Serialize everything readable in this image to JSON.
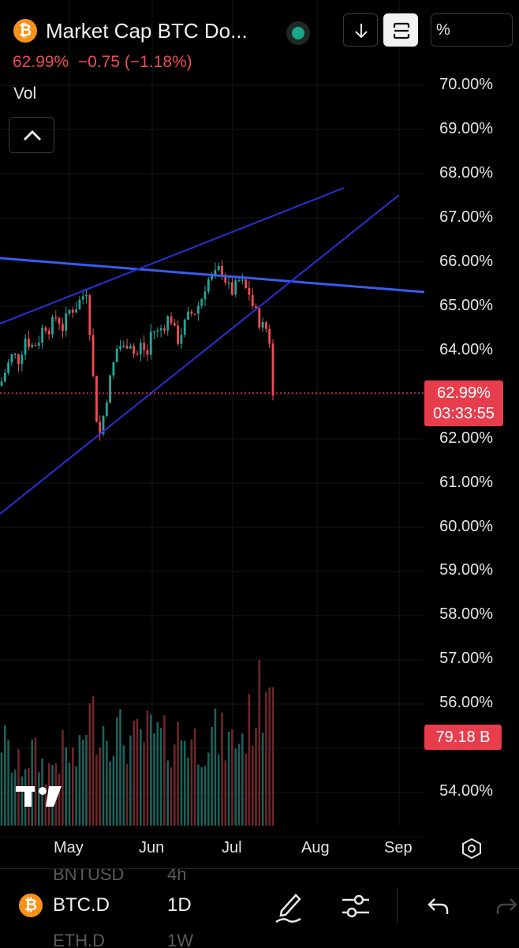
{
  "header": {
    "symbol_title": "Market Cap BTC Do...",
    "last_value": "62.99%",
    "change": "−0.75 (−1.18%)",
    "coin_logo_glyph": "₿",
    "status": "market-open",
    "percent_mode_label": "%",
    "accent_up": "#26a69a",
    "accent_down": "#ef4c55"
  },
  "indicator": {
    "label": "Vol"
  },
  "price_axis": {
    "labels": [
      "70.00%",
      "69.00%",
      "68.00%",
      "67.00%",
      "66.00%",
      "65.00%",
      "64.00%",
      "62.00%",
      "61.00%",
      "60.00%",
      "59.00%",
      "58.00%",
      "57.00%",
      "56.00%",
      "54.00%"
    ],
    "last_price_label": "62.99%",
    "countdown_label": "03:33:55",
    "volume_label": "79.18 B"
  },
  "time_axis": {
    "labels": [
      "May",
      "Jun",
      "Jul",
      "Aug",
      "Sep"
    ]
  },
  "bottom_bar": {
    "symbol": "BTC.D",
    "interval": "1D",
    "ghost_symbol_above": "BNTUSD",
    "ghost_interval_above": "4h",
    "ghost_symbol_below": "ETH.D",
    "ghost_interval_below": "1W"
  },
  "watermark": {
    "text": "TV"
  },
  "chart_data": {
    "type": "candlestick",
    "series_name": "BTC.D",
    "ylim": [
      53.5,
      70.5
    ],
    "last_value": 62.99,
    "trend_lines": 3,
    "candle_path": [
      [
        0,
        63.2
      ],
      [
        8,
        63.6
      ],
      [
        16,
        63.9
      ],
      [
        24,
        63.8
      ],
      [
        32,
        64.3
      ],
      [
        40,
        64.1
      ],
      [
        48,
        64.2
      ],
      [
        56,
        64.6
      ],
      [
        64,
        64.5
      ],
      [
        72,
        64.8
      ],
      [
        80,
        64.5
      ],
      [
        88,
        64.9
      ],
      [
        96,
        65.0
      ],
      [
        104,
        65.2
      ],
      [
        110,
        65.4
      ],
      [
        116,
        64.0
      ],
      [
        120,
        62.8
      ],
      [
        124,
        62.3
      ],
      [
        128,
        62.0
      ],
      [
        132,
        62.7
      ],
      [
        138,
        63.2
      ],
      [
        144,
        63.7
      ],
      [
        150,
        64.2
      ],
      [
        156,
        64.0
      ],
      [
        164,
        64.3
      ],
      [
        172,
        63.8
      ],
      [
        180,
        64.2
      ],
      [
        186,
        63.8
      ],
      [
        192,
        64.5
      ],
      [
        200,
        64.4
      ],
      [
        208,
        64.6
      ],
      [
        216,
        64.8
      ],
      [
        224,
        64.2
      ],
      [
        232,
        64.5
      ],
      [
        240,
        64.8
      ],
      [
        248,
        64.9
      ],
      [
        256,
        65.2
      ],
      [
        262,
        65.6
      ],
      [
        268,
        65.6
      ],
      [
        274,
        65.7
      ],
      [
        280,
        65.9
      ],
      [
        286,
        65.6
      ],
      [
        292,
        65.3
      ],
      [
        298,
        65.4
      ],
      [
        304,
        65.6
      ],
      [
        310,
        65.4
      ],
      [
        316,
        65.3
      ],
      [
        322,
        64.9
      ],
      [
        328,
        64.7
      ],
      [
        334,
        64.5
      ],
      [
        340,
        64.5
      ],
      [
        344,
        63.9
      ],
      [
        347,
        62.99
      ]
    ],
    "volume_path": [
      [
        0,
        0.5
      ],
      [
        20,
        0.3
      ],
      [
        40,
        0.4
      ],
      [
        60,
        0.3
      ],
      [
        80,
        0.4
      ],
      [
        100,
        0.35
      ],
      [
        110,
        0.6
      ],
      [
        130,
        0.55
      ],
      [
        150,
        0.5
      ],
      [
        170,
        0.45
      ],
      [
        190,
        0.5
      ],
      [
        210,
        0.45
      ],
      [
        230,
        0.5
      ],
      [
        250,
        0.45
      ],
      [
        270,
        0.5
      ],
      [
        290,
        0.45
      ],
      [
        310,
        0.5
      ],
      [
        325,
        0.65
      ],
      [
        336,
        0.75
      ],
      [
        340,
        1.0
      ],
      [
        347,
        0.72
      ]
    ]
  }
}
